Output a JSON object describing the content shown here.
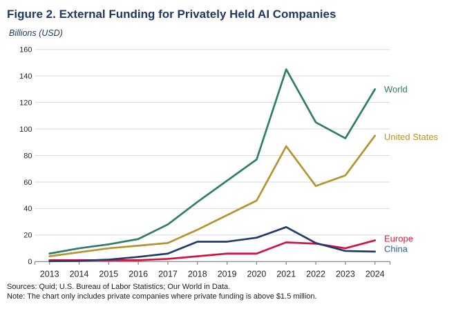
{
  "header": {
    "title": "Figure 2. External Funding for Privately Held AI Companies",
    "subtitle": "Billions (USD)",
    "title_color": "#1F3864"
  },
  "footer": {
    "sources": "Sources: Quid; U.S. Bureau of Labor Statistics; Our World in Data.",
    "note": "Note: The chart only includes private companies where private funding is above $1.5 million."
  },
  "chart_data": {
    "type": "line",
    "title": "Figure 2. External Funding for Privately Held AI Companies",
    "ylabel": "Billions (USD)",
    "xlabel": "",
    "ylim": [
      0,
      160
    ],
    "y_step": 20,
    "grid": true,
    "legend_position": "right-of-line-ends",
    "categories": [
      "2013",
      "2014",
      "2015",
      "2016",
      "2017",
      "2018",
      "2019",
      "2020",
      "2021",
      "2022",
      "2023",
      "2024"
    ],
    "series": [
      {
        "name": "World",
        "color": "#2E7D6B",
        "label_color": "#2E7D6B",
        "label_dy": 0,
        "values": [
          6,
          10,
          13,
          17,
          28,
          45,
          61,
          77,
          145,
          105,
          93,
          130
        ]
      },
      {
        "name": "United States",
        "color": "#B3952F",
        "label_color": "#B3952F",
        "label_dy": 2,
        "values": [
          4,
          7,
          10,
          12,
          14,
          24,
          35,
          46,
          87,
          57,
          65,
          95
        ]
      },
      {
        "name": "Europe",
        "color": "#D41240",
        "label_color": "#E01937",
        "label_dy": -2.5,
        "values": [
          1,
          1,
          1,
          1,
          2,
          4,
          6,
          6,
          14.5,
          13.5,
          10,
          16
        ]
      },
      {
        "name": "China",
        "color": "#1F3B6D",
        "label_color": "#2D5CA6",
        "label_dy": -4,
        "values": [
          0.3,
          0.5,
          1.5,
          3.5,
          6,
          15,
          15,
          18,
          26,
          14,
          8,
          7.5
        ]
      }
    ],
    "axis_color": "#7F7F7F",
    "grid_color": "#D9D9D9",
    "tick_label_color": "#262626"
  }
}
